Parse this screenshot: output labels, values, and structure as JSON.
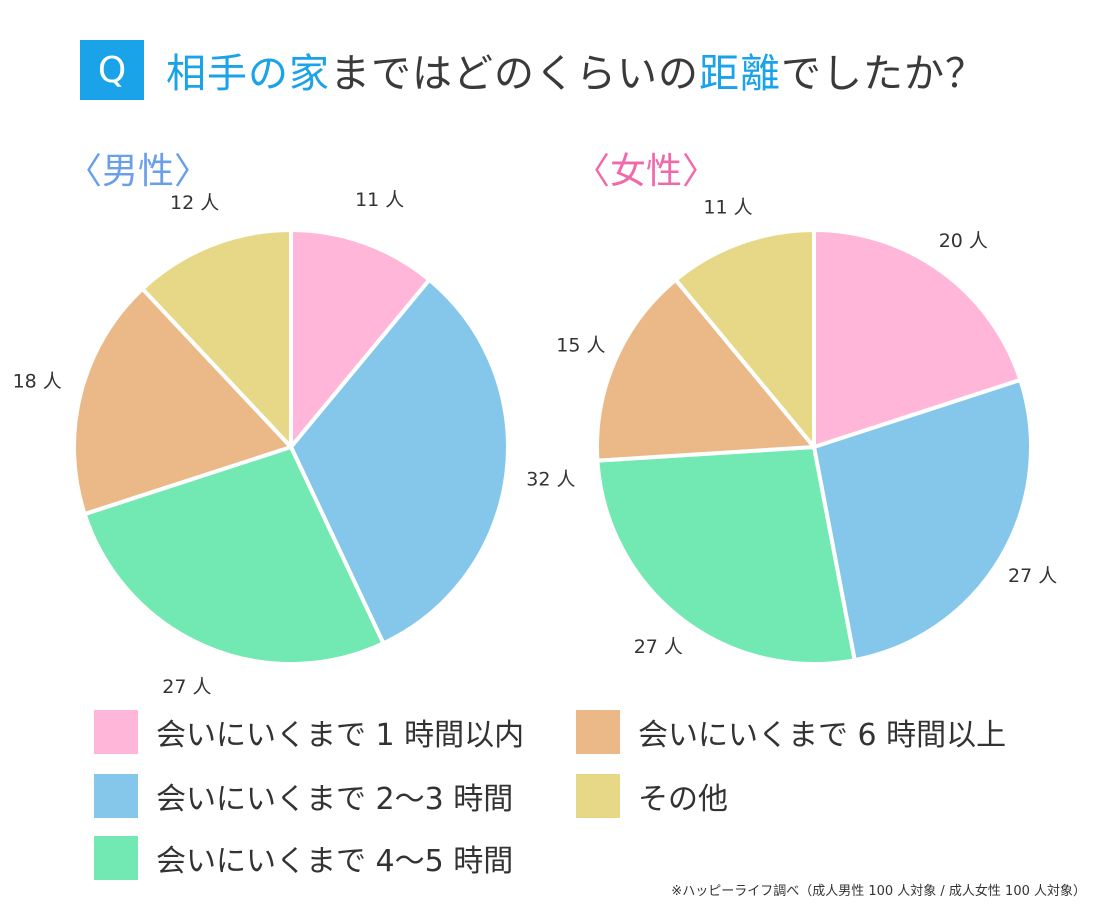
{
  "title": {
    "q_badge": "Q",
    "parts": [
      {
        "text": "相手の家",
        "highlight": true
      },
      {
        "text": "まではどのくらいの",
        "highlight": false
      },
      {
        "text": "距離",
        "highlight": true
      },
      {
        "text": "でしたか？",
        "highlight": false
      }
    ]
  },
  "colors": {
    "accent": "#1aa3e8",
    "male_label": "#6aa0ea",
    "female_label": "#f06aab"
  },
  "categories": [
    {
      "label": "会いにいくまで 1 時間以内",
      "color": "#ffb6d9"
    },
    {
      "label": "会いにいくまで 2〜3 時間",
      "color": "#85c7ea"
    },
    {
      "label": "会いにいくまで 4〜5 時間",
      "color": "#72e8b2"
    },
    {
      "label": "会いにいくまで 6 時間以上",
      "color": "#ebb988"
    },
    {
      "label": "その他",
      "color": "#e6d886"
    }
  ],
  "chart_data": [
    {
      "type": "pie",
      "title": "〈男性〉",
      "categories": [
        "会いにいくまで 1 時間以内",
        "会いにいくまで 2〜3 時間",
        "会いにいくまで 4〜5 時間",
        "会いにいくまで 6 時間以上",
        "その他"
      ],
      "values": [
        11,
        32,
        27,
        18,
        12
      ],
      "value_labels": [
        "11 人",
        "32 人",
        "27 人",
        "18 人",
        "12 人"
      ],
      "start": "12 o'clock, clockwise"
    },
    {
      "type": "pie",
      "title": "〈女性〉",
      "categories": [
        "会いにいくまで 1 時間以内",
        "会いにいくまで 2〜3 時間",
        "会いにいくまで 4〜5 時間",
        "会いにいくまで 6 時間以上",
        "その他"
      ],
      "values": [
        20,
        27,
        27,
        15,
        11
      ],
      "value_labels": [
        "20 人",
        "27 人",
        "27 人",
        "15 人",
        "11 人"
      ],
      "start": "12 o'clock, clockwise"
    }
  ],
  "footnote": "※ハッピーライフ調べ（成人男性 100 人対象 / 成人女性 100 人対象）"
}
